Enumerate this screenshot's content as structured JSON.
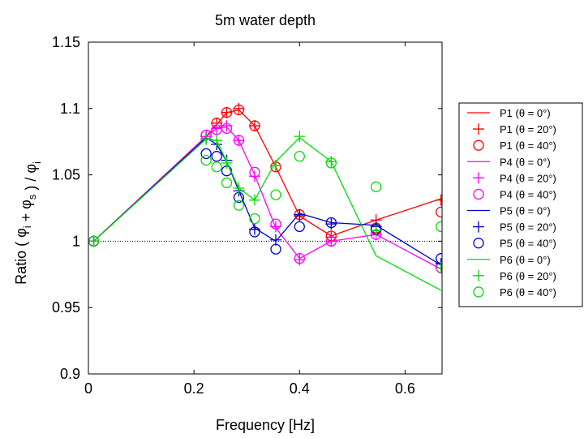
{
  "chart_data": {
    "type": "line",
    "title": "5m water depth",
    "xlabel": "Frequency [Hz]",
    "ylabel": "Ratio ( φ_i + φ_s ) / φ_i",
    "xlim": [
      0,
      0.67
    ],
    "ylim": [
      0.9,
      1.15
    ],
    "x_ticks": [
      0,
      0.2,
      0.4,
      0.6
    ],
    "x_tick_labels": [
      "0",
      "0.2",
      "0.4",
      "0.6"
    ],
    "y_ticks": [
      0.9,
      0.95,
      1.0,
      1.05,
      1.1,
      1.15
    ],
    "y_tick_labels": [
      "0.9",
      "0.95",
      "1",
      "1.05",
      "1.1",
      "1.15"
    ],
    "reference_line": {
      "y": 1.0,
      "style": "dotted"
    },
    "grid": false,
    "legend_position": "right, outside plot",
    "series": [
      {
        "name": "P1 (θ = 0°)",
        "color": "#ff0000",
        "marker": "line",
        "x": [
          0.01,
          0.223,
          0.243,
          0.262,
          0.285,
          0.315,
          0.355,
          0.4,
          0.46,
          0.545,
          0.668
        ],
        "y": [
          1.0,
          1.079,
          1.088,
          1.097,
          1.099,
          1.087,
          1.056,
          1.019,
          1.004,
          1.016,
          1.032
        ]
      },
      {
        "name": "P1 (θ = 20°)",
        "color": "#ff0000",
        "marker": "plus",
        "x": [
          0.01,
          0.223,
          0.243,
          0.262,
          0.285,
          0.315,
          0.355,
          0.4,
          0.46,
          0.545,
          0.668
        ],
        "y": [
          1.0,
          1.079,
          1.089,
          1.097,
          1.1,
          1.087,
          1.057,
          1.019,
          1.003,
          1.016,
          1.031
        ]
      },
      {
        "name": "P1 (θ = 40°)",
        "color": "#ff0000",
        "marker": "circle",
        "x": [
          0.01,
          0.223,
          0.243,
          0.262,
          0.285,
          0.315,
          0.355,
          0.4,
          0.46,
          0.545,
          0.668
        ],
        "y": [
          1.0,
          1.08,
          1.089,
          1.097,
          1.099,
          1.087,
          1.056,
          1.02,
          1.004,
          1.01,
          1.022
        ]
      },
      {
        "name": "P4 (θ = 0°)",
        "color": "#ff00ff",
        "marker": "line",
        "x": [
          0.01,
          0.223,
          0.243,
          0.262,
          0.285,
          0.315,
          0.355,
          0.4,
          0.46,
          0.545,
          0.668
        ],
        "y": [
          1.0,
          1.079,
          1.085,
          1.086,
          1.076,
          1.05,
          1.01,
          0.987,
          1.0,
          1.005,
          0.979
        ]
      },
      {
        "name": "P4 (θ = 20°)",
        "color": "#ff00ff",
        "marker": "plus",
        "x": [
          0.01,
          0.223,
          0.243,
          0.262,
          0.285,
          0.315,
          0.355,
          0.4,
          0.46,
          0.545,
          0.668
        ],
        "y": [
          1.0,
          1.079,
          1.085,
          1.087,
          1.076,
          1.049,
          1.011,
          0.986,
          1.0,
          1.005,
          0.98
        ]
      },
      {
        "name": "P4 (θ = 40°)",
        "color": "#ff00ff",
        "marker": "circle",
        "x": [
          0.01,
          0.223,
          0.243,
          0.262,
          0.285,
          0.315,
          0.355,
          0.4,
          0.46,
          0.545,
          0.668
        ],
        "y": [
          1.0,
          1.08,
          1.084,
          1.085,
          1.076,
          1.052,
          1.013,
          0.987,
          1.0,
          1.005,
          0.98
        ]
      },
      {
        "name": "P5 (θ = 0°)",
        "color": "#0000cc",
        "marker": "line",
        "x": [
          0.01,
          0.223,
          0.243,
          0.262,
          0.285,
          0.315,
          0.355,
          0.4,
          0.46,
          0.545,
          0.668
        ],
        "y": [
          1.0,
          1.078,
          1.073,
          1.06,
          1.038,
          1.01,
          1.0,
          1.021,
          1.014,
          1.012,
          0.982
        ]
      },
      {
        "name": "P5 (θ = 20°)",
        "color": "#0000cc",
        "marker": "plus",
        "x": [
          0.01,
          0.223,
          0.243,
          0.262,
          0.285,
          0.315,
          0.355,
          0.4,
          0.46,
          0.545,
          0.668
        ],
        "y": [
          1.0,
          1.077,
          1.073,
          1.061,
          1.038,
          1.009,
          1.001,
          1.02,
          1.013,
          1.011,
          0.983
        ]
      },
      {
        "name": "P5 (θ = 40°)",
        "color": "#0000cc",
        "marker": "circle",
        "x": [
          0.01,
          0.223,
          0.243,
          0.262,
          0.285,
          0.315,
          0.355,
          0.4,
          0.46,
          0.545,
          0.668
        ],
        "y": [
          1.0,
          1.066,
          1.064,
          1.053,
          1.033,
          1.007,
          0.994,
          1.011,
          1.014,
          1.009,
          0.987
        ]
      },
      {
        "name": "P6 (θ = 0°)",
        "color": "#00dd00",
        "marker": "line",
        "x": [
          0.01,
          0.223,
          0.243,
          0.262,
          0.285,
          0.315,
          0.355,
          0.4,
          0.46,
          0.545,
          0.668
        ],
        "y": [
          1.0,
          1.077,
          1.076,
          1.06,
          1.04,
          1.031,
          1.06,
          1.078,
          1.06,
          0.989,
          0.963
        ]
      },
      {
        "name": "P6 (θ = 20°)",
        "color": "#00dd00",
        "marker": "plus",
        "x": [
          0.01,
          0.223,
          0.243,
          0.262,
          0.285,
          0.315,
          0.355,
          0.4,
          0.46,
          0.545,
          0.668
        ],
        "y": [
          1.0,
          1.077,
          1.076,
          1.059,
          1.04,
          1.031,
          1.057,
          1.079,
          1.06,
          1.008,
          0.98
        ]
      },
      {
        "name": "P6 (θ = 40°)",
        "color": "#00dd00",
        "marker": "circle",
        "x": [
          0.01,
          0.223,
          0.243,
          0.262,
          0.285,
          0.315,
          0.355,
          0.4,
          0.46,
          0.545,
          0.668
        ],
        "y": [
          1.0,
          1.061,
          1.056,
          1.044,
          1.027,
          1.017,
          1.035,
          1.064,
          1.059,
          1.041,
          1.011
        ]
      }
    ]
  }
}
